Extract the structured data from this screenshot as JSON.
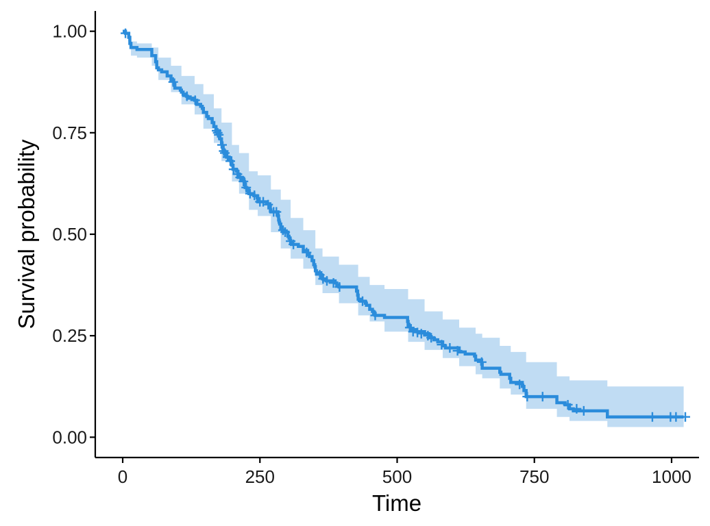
{
  "chart_data": {
    "type": "line",
    "xlabel": "Time",
    "ylabel": "Survival probability",
    "xlim": [
      -50,
      1050
    ],
    "ylim": [
      -0.05,
      1.05
    ],
    "x_ticks": [
      0,
      250,
      500,
      750,
      1000
    ],
    "x_tick_labels": [
      "0",
      "250",
      "500",
      "750",
      "1000"
    ],
    "y_ticks": [
      0,
      0.25,
      0.5,
      0.75,
      1
    ],
    "y_tick_labels": [
      "0.00",
      "0.25",
      "0.50",
      "0.75",
      "1.00"
    ],
    "grid": false,
    "legend": "none",
    "colors": {
      "line": "#2b8cdb",
      "band": "#c0dcf3",
      "axis": "#000000"
    },
    "series": [
      {
        "steps": [
          [
            0,
            1.0
          ],
          [
            5,
            0.995
          ],
          [
            11,
            0.985
          ],
          [
            13,
            0.97
          ],
          [
            15,
            0.96
          ],
          [
            26,
            0.955
          ],
          [
            53,
            0.94
          ],
          [
            60,
            0.925
          ],
          [
            62,
            0.91
          ],
          [
            65,
            0.905
          ],
          [
            71,
            0.9
          ],
          [
            81,
            0.89
          ],
          [
            88,
            0.88
          ],
          [
            93,
            0.87
          ],
          [
            95,
            0.86
          ],
          [
            105,
            0.855
          ],
          [
            107,
            0.85
          ],
          [
            110,
            0.845
          ],
          [
            116,
            0.84
          ],
          [
            118,
            0.835
          ],
          [
            131,
            0.83
          ],
          [
            135,
            0.82
          ],
          [
            142,
            0.815
          ],
          [
            145,
            0.81
          ],
          [
            147,
            0.8
          ],
          [
            153,
            0.79
          ],
          [
            156,
            0.785
          ],
          [
            163,
            0.775
          ],
          [
            166,
            0.765
          ],
          [
            170,
            0.755
          ],
          [
            176,
            0.745
          ],
          [
            177,
            0.735
          ],
          [
            180,
            0.725
          ],
          [
            181,
            0.715
          ],
          [
            183,
            0.705
          ],
          [
            186,
            0.7
          ],
          [
            189,
            0.69
          ],
          [
            194,
            0.685
          ],
          [
            197,
            0.68
          ],
          [
            199,
            0.67
          ],
          [
            201,
            0.66
          ],
          [
            207,
            0.655
          ],
          [
            210,
            0.645
          ],
          [
            212,
            0.64
          ],
          [
            218,
            0.635
          ],
          [
            221,
            0.63
          ],
          [
            222,
            0.625
          ],
          [
            223,
            0.615
          ],
          [
            226,
            0.61
          ],
          [
            229,
            0.605
          ],
          [
            230,
            0.6
          ],
          [
            239,
            0.595
          ],
          [
            245,
            0.59
          ],
          [
            246,
            0.58
          ],
          [
            262,
            0.575
          ],
          [
            268,
            0.57
          ],
          [
            269,
            0.56
          ],
          [
            270,
            0.555
          ],
          [
            283,
            0.545
          ],
          [
            284,
            0.535
          ],
          [
            285,
            0.53
          ],
          [
            286,
            0.525
          ],
          [
            288,
            0.515
          ],
          [
            291,
            0.51
          ],
          [
            293,
            0.505
          ],
          [
            301,
            0.495
          ],
          [
            303,
            0.49
          ],
          [
            305,
            0.485
          ],
          [
            306,
            0.48
          ],
          [
            310,
            0.475
          ],
          [
            320,
            0.47
          ],
          [
            329,
            0.46
          ],
          [
            337,
            0.45
          ],
          [
            340,
            0.445
          ],
          [
            345,
            0.435
          ],
          [
            348,
            0.425
          ],
          [
            350,
            0.42
          ],
          [
            351,
            0.41
          ],
          [
            353,
            0.405
          ],
          [
            361,
            0.4
          ],
          [
            363,
            0.395
          ],
          [
            364,
            0.39
          ],
          [
            371,
            0.385
          ],
          [
            387,
            0.38
          ],
          [
            390,
            0.375
          ],
          [
            394,
            0.37
          ],
          [
            426,
            0.36
          ],
          [
            428,
            0.35
          ],
          [
            429,
            0.34
          ],
          [
            433,
            0.335
          ],
          [
            442,
            0.33
          ],
          [
            444,
            0.325
          ],
          [
            450,
            0.315
          ],
          [
            455,
            0.31
          ],
          [
            457,
            0.305
          ],
          [
            460,
            0.3
          ],
          [
            477,
            0.295
          ],
          [
            519,
            0.285
          ],
          [
            520,
            0.275
          ],
          [
            524,
            0.265
          ],
          [
            533,
            0.26
          ],
          [
            550,
            0.255
          ],
          [
            558,
            0.245
          ],
          [
            567,
            0.24
          ],
          [
            574,
            0.235
          ],
          [
            583,
            0.225
          ],
          [
            588,
            0.22
          ],
          [
            613,
            0.21
          ],
          [
            624,
            0.205
          ],
          [
            641,
            0.2
          ],
          [
            643,
            0.19
          ],
          [
            654,
            0.18
          ],
          [
            655,
            0.17
          ],
          [
            687,
            0.16
          ],
          [
            689,
            0.155
          ],
          [
            705,
            0.145
          ],
          [
            707,
            0.135
          ],
          [
            728,
            0.125
          ],
          [
            731,
            0.115
          ],
          [
            735,
            0.1
          ],
          [
            791,
            0.085
          ],
          [
            806,
            0.08
          ],
          [
            814,
            0.07
          ],
          [
            821,
            0.065
          ],
          [
            883,
            0.05
          ],
          [
            1022,
            0.05
          ]
        ],
        "censored": [
          [
            5,
            0.995
          ],
          [
            92,
            0.875
          ],
          [
            117,
            0.84
          ],
          [
            132,
            0.83
          ],
          [
            171,
            0.755
          ],
          [
            173,
            0.75
          ],
          [
            175,
            0.745
          ],
          [
            181,
            0.72
          ],
          [
            184,
            0.705
          ],
          [
            186,
            0.7
          ],
          [
            191,
            0.69
          ],
          [
            196,
            0.68
          ],
          [
            202,
            0.66
          ],
          [
            209,
            0.648
          ],
          [
            214,
            0.64
          ],
          [
            220,
            0.63
          ],
          [
            225,
            0.615
          ],
          [
            232,
            0.6
          ],
          [
            240,
            0.596
          ],
          [
            250,
            0.58
          ],
          [
            256,
            0.58
          ],
          [
            265,
            0.573
          ],
          [
            275,
            0.555
          ],
          [
            280,
            0.555
          ],
          [
            292,
            0.51
          ],
          [
            296,
            0.505
          ],
          [
            306,
            0.483
          ],
          [
            311,
            0.475
          ],
          [
            335,
            0.455
          ],
          [
            359,
            0.4
          ],
          [
            365,
            0.39
          ],
          [
            372,
            0.385
          ],
          [
            384,
            0.38
          ],
          [
            395,
            0.37
          ],
          [
            437,
            0.335
          ],
          [
            460,
            0.3
          ],
          [
            523,
            0.27
          ],
          [
            529,
            0.26
          ],
          [
            537,
            0.258
          ],
          [
            544,
            0.255
          ],
          [
            556,
            0.25
          ],
          [
            562,
            0.245
          ],
          [
            581,
            0.228
          ],
          [
            596,
            0.22
          ],
          [
            610,
            0.213
          ],
          [
            654,
            0.185
          ],
          [
            723,
            0.13
          ],
          [
            737,
            0.1
          ],
          [
            765,
            0.1
          ],
          [
            811,
            0.08
          ],
          [
            827,
            0.07
          ],
          [
            840,
            0.065
          ],
          [
            965,
            0.05
          ],
          [
            998,
            0.05
          ],
          [
            1008,
            0.05
          ],
          [
            1025,
            0.05
          ]
        ],
        "ci_band": [
          [
            0,
            1.0,
            1.0
          ],
          [
            10,
            0.99,
            0.975
          ],
          [
            15,
            0.975,
            0.94
          ],
          [
            26,
            0.97,
            0.935
          ],
          [
            53,
            0.96,
            0.915
          ],
          [
            65,
            0.935,
            0.88
          ],
          [
            88,
            0.915,
            0.85
          ],
          [
            107,
            0.89,
            0.82
          ],
          [
            131,
            0.87,
            0.795
          ],
          [
            147,
            0.845,
            0.76
          ],
          [
            166,
            0.81,
            0.725
          ],
          [
            180,
            0.775,
            0.68
          ],
          [
            199,
            0.72,
            0.63
          ],
          [
            212,
            0.7,
            0.6
          ],
          [
            230,
            0.655,
            0.56
          ],
          [
            246,
            0.645,
            0.545
          ],
          [
            270,
            0.61,
            0.505
          ],
          [
            288,
            0.585,
            0.465
          ],
          [
            306,
            0.54,
            0.44
          ],
          [
            329,
            0.51,
            0.415
          ],
          [
            351,
            0.465,
            0.375
          ],
          [
            364,
            0.445,
            0.355
          ],
          [
            394,
            0.425,
            0.33
          ],
          [
            429,
            0.395,
            0.3
          ],
          [
            450,
            0.375,
            0.285
          ],
          [
            477,
            0.365,
            0.26
          ],
          [
            520,
            0.34,
            0.235
          ],
          [
            550,
            0.31,
            0.215
          ],
          [
            583,
            0.29,
            0.195
          ],
          [
            613,
            0.27,
            0.175
          ],
          [
            643,
            0.255,
            0.155
          ],
          [
            655,
            0.245,
            0.145
          ],
          [
            687,
            0.225,
            0.12
          ],
          [
            707,
            0.21,
            0.105
          ],
          [
            735,
            0.185,
            0.07
          ],
          [
            791,
            0.15,
            0.05
          ],
          [
            814,
            0.14,
            0.04
          ],
          [
            883,
            0.125,
            0.025
          ],
          [
            1022,
            0.125,
            0.025
          ]
        ]
      }
    ]
  }
}
